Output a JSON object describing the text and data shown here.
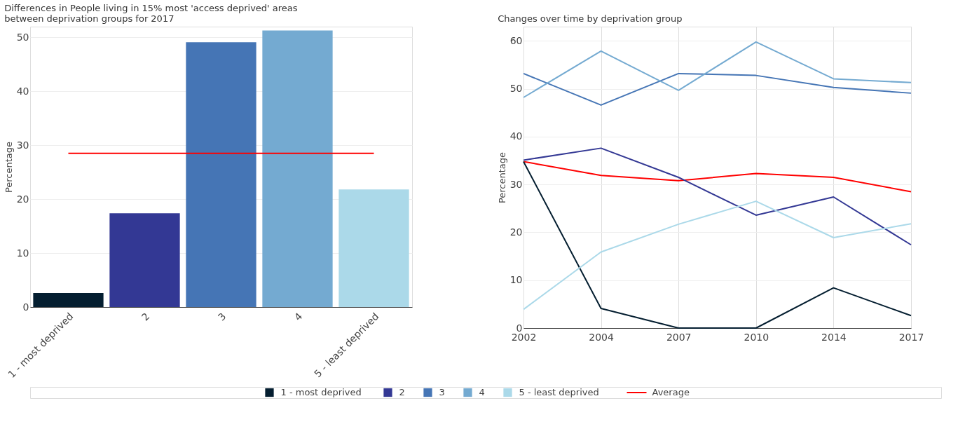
{
  "chart_data": [
    {
      "type": "bar",
      "title": "Differences in People living in 15% most 'access deprived' areas between deprivation groups for 2017",
      "ylabel": "Percentage",
      "categories": [
        "1 - most deprived",
        "2",
        "3",
        "4",
        "5 - least deprived"
      ],
      "series": [
        {
          "type": "bar",
          "colors": [
            "#041e30",
            "#333894",
            "#4575b5",
            "#74aad1",
            "#abd9e9"
          ],
          "values": [
            2.6,
            17.4,
            49.1,
            51.3,
            21.8
          ]
        },
        {
          "type": "line",
          "name": "Average",
          "color": "#ff0000",
          "values": [
            28.5,
            28.5,
            28.5,
            28.5,
            28.5
          ]
        }
      ],
      "ylim": [
        0,
        52
      ],
      "yticks": [
        0,
        10,
        20,
        30,
        40,
        50
      ],
      "grid": "y",
      "legend": "bottom"
    },
    {
      "type": "line",
      "title": "Changes over time by deprivation group",
      "ylabel": "Percentage",
      "categories": [
        "2002",
        "2004",
        "2007",
        "2010",
        "2014",
        "2017"
      ],
      "series": [
        {
          "name": "Average",
          "color": "#ff0000",
          "values": [
            34.8,
            31.9,
            30.8,
            32.3,
            31.5,
            28.5
          ]
        },
        {
          "name": "1 - most deprived",
          "color": "#041e30",
          "values": [
            34.8,
            4.1,
            0,
            0,
            8.4,
            2.6
          ]
        },
        {
          "name": "2",
          "color": "#333894",
          "values": [
            35.1,
            37.6,
            31.5,
            23.6,
            27.4,
            17.4
          ]
        },
        {
          "name": "3",
          "color": "#4575b5",
          "values": [
            53.2,
            46.6,
            53.2,
            52.8,
            50.3,
            49.1
          ]
        },
        {
          "name": "4",
          "color": "#74aad1",
          "values": [
            48.2,
            57.9,
            49.7,
            59.8,
            52.1,
            51.3
          ]
        },
        {
          "name": "5 - least deprived",
          "color": "#abd9e9",
          "values": [
            3.9,
            15.9,
            21.7,
            26.5,
            18.9,
            21.8
          ]
        }
      ],
      "ylim": [
        0,
        63
      ],
      "yticks": [
        0,
        10,
        20,
        30,
        40,
        50,
        60
      ],
      "grid": true,
      "legend": "bottom"
    }
  ]
}
